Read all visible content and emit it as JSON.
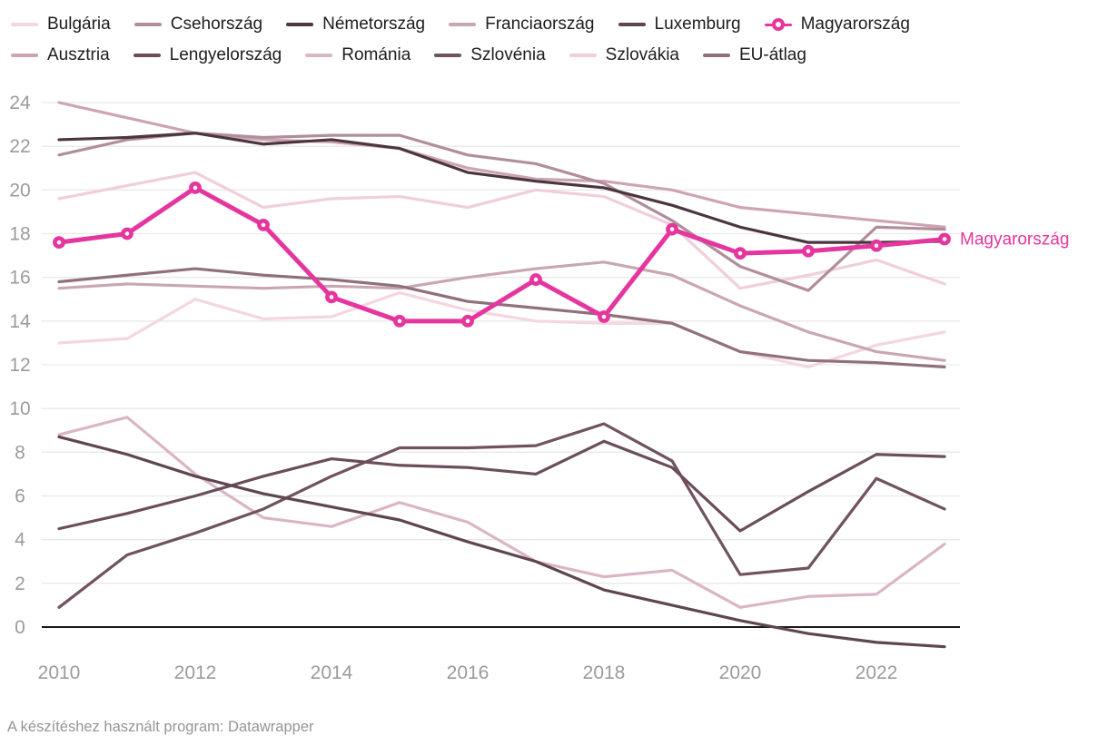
{
  "legend": {
    "items": [
      {
        "label": "Bulgária",
        "color": "#f3d6e1",
        "marker": "line",
        "row": 1
      },
      {
        "label": "Csehország",
        "color": "#b08e9b",
        "marker": "line",
        "row": 1
      },
      {
        "label": "Németország",
        "color": "#4b3640",
        "marker": "line",
        "row": 1
      },
      {
        "label": "Franciaország",
        "color": "#c9a7b2",
        "marker": "line",
        "row": 1
      },
      {
        "label": "Luxemburg",
        "color": "#5e4650",
        "marker": "line",
        "row": 1
      },
      {
        "label": "Magyarország",
        "color": "#e5359e",
        "marker": "dot",
        "row": 1
      },
      {
        "label": "Ausztria",
        "color": "#cda4b2",
        "marker": "line",
        "row": 2
      },
      {
        "label": "Lengyelország",
        "color": "#6b4d5b",
        "marker": "line",
        "row": 2
      },
      {
        "label": "Románia",
        "color": "#dab5c5",
        "marker": "line",
        "row": 2
      },
      {
        "label": "Szlovénia",
        "color": "#705260",
        "marker": "line",
        "row": 2
      },
      {
        "label": "Szlovákia",
        "color": "#f0cedb",
        "marker": "line",
        "row": 2
      },
      {
        "label": "EU-átlag",
        "color": "#90707c",
        "marker": "line",
        "row": 2
      }
    ]
  },
  "chart_data": {
    "type": "line",
    "x": [
      2010,
      2011,
      2012,
      2013,
      2014,
      2015,
      2016,
      2017,
      2018,
      2019,
      2020,
      2021,
      2022,
      2023
    ],
    "x_ticks": [
      2010,
      2012,
      2014,
      2016,
      2018,
      2020,
      2022
    ],
    "y_ticks": [
      0,
      2,
      4,
      6,
      8,
      10,
      12,
      14,
      16,
      18,
      20,
      22,
      24
    ],
    "ylim": [
      -1.6,
      24.6
    ],
    "grid": true,
    "legend_position": "top",
    "end_label": "Magyarország",
    "end_label_value": 17.75,
    "series": [
      {
        "name": "Szlovákia",
        "color": "#f0cedb",
        "highlight": false,
        "values": [
          19.6,
          20.2,
          20.8,
          19.2,
          19.6,
          19.7,
          19.2,
          20.0,
          19.7,
          18.4,
          15.5,
          16.1,
          16.8,
          15.7
        ]
      },
      {
        "name": "Bulgária",
        "color": "#f3d6e1",
        "highlight": false,
        "values": [
          13.0,
          13.2,
          15.0,
          14.1,
          14.2,
          15.3,
          14.5,
          14.0,
          13.9,
          13.9,
          12.6,
          11.9,
          12.9,
          13.5
        ]
      },
      {
        "name": "Románia",
        "color": "#dab5c5",
        "highlight": false,
        "values": [
          8.8,
          9.6,
          7.0,
          5.0,
          4.6,
          5.7,
          4.8,
          3.0,
          2.3,
          2.6,
          0.9,
          1.4,
          1.5,
          3.8
        ]
      },
      {
        "name": "Ausztria",
        "color": "#cda4b2",
        "highlight": false,
        "values": [
          24.0,
          23.3,
          22.6,
          22.3,
          22.2,
          21.9,
          21.0,
          20.5,
          20.4,
          20.0,
          19.2,
          18.9,
          18.6,
          18.3
        ]
      },
      {
        "name": "Franciaország",
        "color": "#c9a7b2",
        "highlight": false,
        "values": [
          15.5,
          15.7,
          15.6,
          15.5,
          15.6,
          15.5,
          16.0,
          16.4,
          16.7,
          16.1,
          14.7,
          13.5,
          12.6,
          12.2
        ]
      },
      {
        "name": "Csehország",
        "color": "#b08e9b",
        "highlight": false,
        "values": [
          21.6,
          22.3,
          22.6,
          22.4,
          22.5,
          22.5,
          21.6,
          21.2,
          20.3,
          18.6,
          16.5,
          15.4,
          18.3,
          18.2
        ]
      },
      {
        "name": "EU-átlag",
        "color": "#90707c",
        "highlight": false,
        "values": [
          15.8,
          16.1,
          16.4,
          16.1,
          15.9,
          15.6,
          14.9,
          14.6,
          14.3,
          13.9,
          12.6,
          12.2,
          12.1,
          11.9
        ]
      },
      {
        "name": "Szlovénia",
        "color": "#705260",
        "highlight": false,
        "values": [
          0.9,
          3.3,
          4.3,
          5.4,
          6.9,
          8.2,
          8.2,
          8.3,
          9.3,
          7.6,
          2.4,
          2.7,
          6.8,
          5.4
        ]
      },
      {
        "name": "Lengyelország",
        "color": "#6b4d5b",
        "highlight": false,
        "values": [
          4.5,
          5.2,
          6.0,
          6.9,
          7.7,
          7.4,
          7.3,
          7.0,
          8.5,
          7.3,
          4.4,
          6.2,
          7.9,
          7.8
        ]
      },
      {
        "name": "Luxemburg",
        "color": "#5e4650",
        "highlight": false,
        "values": [
          8.7,
          7.9,
          6.9,
          6.1,
          5.5,
          4.9,
          3.9,
          3.0,
          1.7,
          1.0,
          0.3,
          -0.3,
          -0.7,
          -0.9
        ]
      },
      {
        "name": "Németország",
        "color": "#4b3640",
        "highlight": false,
        "values": [
          22.3,
          22.4,
          22.6,
          22.1,
          22.3,
          21.9,
          20.8,
          20.4,
          20.1,
          19.3,
          18.3,
          17.6,
          17.6,
          17.65
        ]
      },
      {
        "name": "Magyarország",
        "color": "#e5359e",
        "highlight": true,
        "values": [
          17.6,
          18.0,
          20.1,
          18.4,
          15.1,
          14.0,
          14.0,
          15.9,
          14.2,
          18.2,
          17.1,
          17.2,
          17.45,
          17.75
        ]
      }
    ]
  },
  "footer": {
    "credit": "A készítéshez használt program: Datawrapper"
  }
}
